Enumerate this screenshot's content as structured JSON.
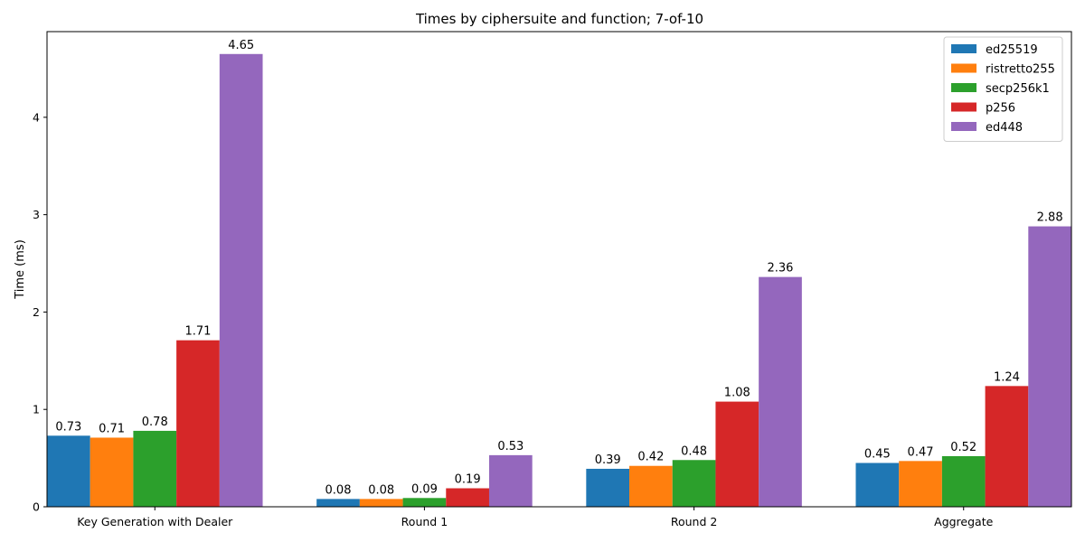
{
  "chart_data": {
    "type": "bar",
    "title": "Times by ciphersuite and function; 7-of-10",
    "xlabel": "",
    "ylabel": "Time (ms)",
    "ylim": [
      0,
      4.88
    ],
    "yticks": [
      0,
      1,
      2,
      3,
      4
    ],
    "grid": false,
    "legend_position": "top-right",
    "categories": [
      "Key Generation with Dealer",
      "Round 1",
      "Round 2",
      "Aggregate"
    ],
    "series": [
      {
        "name": "ed25519",
        "color": "#1f77b4",
        "values": [
          0.73,
          0.08,
          0.39,
          0.45
        ]
      },
      {
        "name": "ristretto255",
        "color": "#ff7f0e",
        "values": [
          0.71,
          0.08,
          0.42,
          0.47
        ]
      },
      {
        "name": "secp256k1",
        "color": "#2ca02c",
        "values": [
          0.78,
          0.09,
          0.48,
          0.52
        ]
      },
      {
        "name": "p256",
        "color": "#d62728",
        "values": [
          1.71,
          0.19,
          1.08,
          1.24
        ]
      },
      {
        "name": "ed448",
        "color": "#9467bd",
        "values": [
          4.65,
          0.53,
          2.36,
          2.88
        ]
      }
    ]
  }
}
